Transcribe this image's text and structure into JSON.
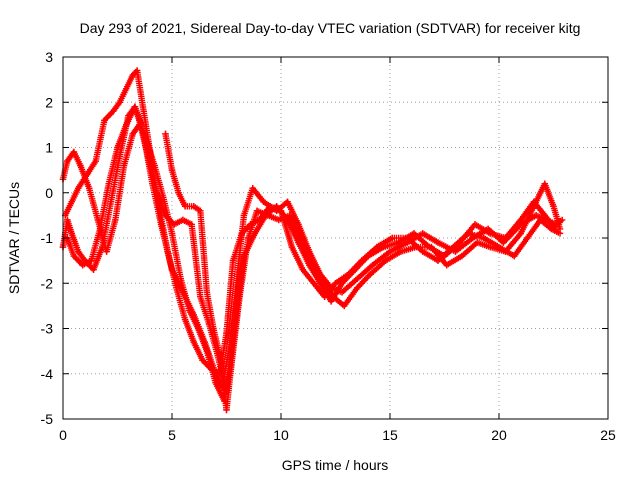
{
  "chart_data": {
    "type": "scatter",
    "title": "Day 293 of 2021, Sidereal Day-to-day VTEC variation (SDTVAR) for receiver kitg",
    "xlabel": "GPS time / hours",
    "ylabel": "SDTVAR / TECUs",
    "xlim": [
      0,
      25
    ],
    "ylim": [
      -5,
      3
    ],
    "xticks": [
      0,
      5,
      10,
      15,
      20,
      25
    ],
    "yticks": [
      3,
      2,
      1,
      0,
      -1,
      -2,
      -3,
      -4,
      -5
    ],
    "grid": true,
    "marker": "plus",
    "color": "#ff0000",
    "series": [
      {
        "x": [
          0.0,
          0.2,
          0.4,
          0.7,
          1.0,
          1.4,
          1.8,
          2.2,
          2.6,
          3.0,
          3.3,
          3.5,
          3.8,
          4.1,
          4.5,
          5.0,
          5.5,
          6.0,
          6.5,
          7.0,
          7.3,
          7.6,
          8.0,
          8.3,
          8.7,
          9.2,
          9.8,
          10.3,
          10.8,
          11.3,
          11.8,
          12.3,
          12.8,
          13.5,
          14.2,
          15.0,
          15.8,
          16.5,
          17.2,
          18.0,
          18.8,
          19.5,
          20.2,
          21.0,
          21.7,
          22.2,
          22.6,
          22.9
        ],
        "y": [
          -1.2,
          -0.6,
          -0.9,
          -1.3,
          -1.5,
          -1.7,
          -1.2,
          -0.2,
          0.8,
          1.7,
          1.9,
          1.6,
          1.0,
          0.2,
          -0.7,
          -1.7,
          -2.2,
          -2.7,
          -3.3,
          -4.0,
          -4.3,
          -3.5,
          -1.8,
          -0.5,
          0.1,
          -0.2,
          -0.4,
          -0.2,
          -0.7,
          -1.3,
          -1.8,
          -2.1,
          -2.2,
          -1.9,
          -1.6,
          -1.3,
          -1.1,
          -0.9,
          -1.1,
          -1.3,
          -1.0,
          -0.8,
          -1.1,
          -0.7,
          -0.5,
          -0.6,
          -0.7,
          -0.6
        ]
      },
      {
        "x": [
          0.0,
          0.2,
          0.5,
          0.8,
          1.2,
          1.6,
          2.0,
          2.4,
          2.8,
          3.2,
          3.5,
          3.8,
          4.2,
          4.6,
          5.0,
          5.4,
          5.8,
          6.2,
          6.6,
          7.0,
          7.4,
          7.7,
          8.1,
          8.5,
          8.9,
          9.4,
          9.9,
          10.4,
          10.9,
          11.4,
          11.9,
          12.4,
          12.9,
          13.5,
          14.1,
          14.8,
          15.5,
          16.2,
          16.9,
          17.6,
          18.3,
          19.0,
          19.6,
          20.3,
          21.0,
          21.6,
          22.1,
          22.5,
          22.8
        ],
        "y": [
          0.3,
          0.7,
          0.9,
          0.6,
          0.1,
          -0.6,
          -1.3,
          -0.6,
          0.6,
          1.3,
          1.5,
          1.2,
          0.6,
          -0.1,
          -0.9,
          -1.9,
          -2.6,
          -3.0,
          -3.5,
          -4.2,
          -4.6,
          -3.9,
          -2.3,
          -1.0,
          -0.4,
          -0.5,
          -0.6,
          -0.5,
          -1.0,
          -1.5,
          -1.9,
          -2.3,
          -2.5,
          -2.1,
          -1.8,
          -1.5,
          -1.3,
          -1.2,
          -1.2,
          -1.6,
          -1.4,
          -1.1,
          -1.2,
          -1.3,
          -0.9,
          -0.3,
          0.2,
          -0.3,
          -0.8
        ]
      },
      {
        "x": [
          0.1,
          0.4,
          0.7,
          1.1,
          1.5,
          1.9,
          2.3,
          2.6,
          2.9,
          3.2,
          3.4,
          3.7,
          4.0,
          4.4,
          4.8,
          5.2,
          5.6,
          6.0,
          6.4,
          6.8,
          7.2,
          7.5,
          7.8,
          8.2,
          8.6,
          9.0,
          9.5,
          10.0,
          10.5,
          11.0,
          11.5,
          12.0,
          12.5,
          13.1,
          13.7,
          14.4,
          15.1,
          15.8,
          16.5,
          17.2,
          17.9,
          18.6,
          19.3,
          20.0,
          20.7,
          21.3,
          21.9,
          22.4,
          22.8
        ],
        "y": [
          -0.5,
          -0.2,
          0.1,
          0.4,
          0.7,
          1.6,
          1.8,
          2.0,
          2.3,
          2.6,
          2.7,
          1.8,
          0.9,
          -0.3,
          -1.3,
          -2.1,
          -2.8,
          -3.3,
          -3.7,
          -3.9,
          -4.0,
          -3.1,
          -1.5,
          -0.9,
          -0.7,
          -0.6,
          -0.3,
          -0.4,
          -1.2,
          -1.7,
          -2.0,
          -2.3,
          -2.0,
          -1.8,
          -1.5,
          -1.2,
          -1.0,
          -1.0,
          -1.3,
          -1.5,
          -1.2,
          -0.9,
          -1.0,
          -1.2,
          -1.4,
          -1.0,
          -0.6,
          -0.8,
          -0.9
        ]
      },
      {
        "x": [
          0.2,
          0.5,
          0.9,
          1.3,
          1.7,
          2.1,
          2.5,
          2.9,
          3.3,
          3.6,
          3.9,
          4.3,
          4.7,
          5.1,
          5.5,
          5.9,
          6.3,
          6.7,
          7.1,
          7.5,
          7.9,
          8.3,
          8.8,
          9.3,
          9.8,
          10.3,
          10.8,
          11.3,
          11.8,
          12.3,
          12.8,
          13.4,
          14.0,
          14.7,
          15.4,
          16.1,
          16.8,
          17.5,
          18.2,
          18.9,
          19.6,
          20.3,
          21.0,
          21.6,
          22.1,
          22.6
        ],
        "y": [
          -1.0,
          -1.4,
          -1.6,
          -1.5,
          -0.8,
          0.2,
          1.0,
          1.5,
          1.9,
          1.5,
          0.8,
          0.0,
          -0.5,
          -0.7,
          -0.6,
          -0.7,
          -2.3,
          -2.9,
          -3.6,
          -4.4,
          -2.8,
          -1.4,
          -0.9,
          -0.5,
          -0.3,
          -0.6,
          -1.1,
          -1.6,
          -2.0,
          -2.4,
          -2.0,
          -1.7,
          -1.4,
          -1.2,
          -1.1,
          -0.9,
          -1.2,
          -1.4,
          -1.1,
          -0.7,
          -0.9,
          -1.0,
          -0.6,
          -0.2,
          -0.5,
          -0.8
        ]
      },
      {
        "x": [
          4.7,
          5.0,
          5.3,
          5.6,
          6.0,
          6.3,
          6.6,
          6.9,
          7.2,
          7.5,
          7.9,
          8.3
        ],
        "y": [
          1.3,
          0.5,
          0.0,
          -0.3,
          -0.3,
          -0.4,
          -2.2,
          -3.0,
          -3.6,
          -4.8,
          -3.0,
          -1.4
        ]
      }
    ]
  }
}
